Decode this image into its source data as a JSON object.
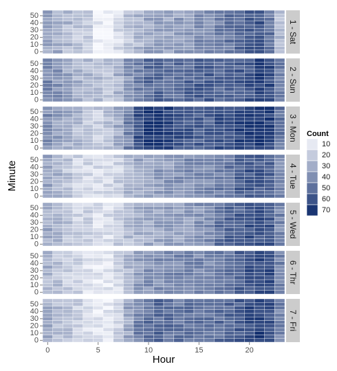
{
  "chart_data": {
    "type": "heatmap",
    "xlabel": "Hour",
    "ylabel": "Minute",
    "x_ticks": [
      0,
      5,
      10,
      15,
      20
    ],
    "y_ticks": [
      0,
      10,
      20,
      30,
      40,
      50
    ],
    "xlim": [
      -0.5,
      23.5
    ],
    "ylim": [
      -2.5,
      57.5
    ],
    "grid": true,
    "legend": {
      "title": "Count",
      "placement": "right",
      "levels": [
        10,
        20,
        30,
        40,
        50,
        60,
        70
      ]
    },
    "color_low": "#f7f8fd",
    "color_high": "#132f6e",
    "facets": [
      {
        "label": "1 - Sat",
        "hourly_values": [
          34,
          30,
          26,
          22,
          20,
          8,
          6,
          14,
          22,
          26,
          32,
          34,
          32,
          34,
          36,
          40,
          40,
          44,
          48,
          52,
          56,
          60,
          48,
          24
        ]
      },
      {
        "label": "2 - Sun",
        "hourly_values": [
          42,
          38,
          32,
          28,
          28,
          24,
          24,
          28,
          38,
          46,
          52,
          54,
          50,
          50,
          54,
          56,
          56,
          54,
          54,
          56,
          60,
          66,
          62,
          44
        ]
      },
      {
        "label": "3 - Mon",
        "hourly_values": [
          40,
          34,
          30,
          26,
          22,
          20,
          22,
          30,
          44,
          62,
          70,
          70,
          66,
          60,
          58,
          56,
          56,
          60,
          62,
          64,
          68,
          70,
          66,
          48
        ]
      },
      {
        "label": "4 - Tue",
        "hourly_values": [
          34,
          28,
          22,
          18,
          16,
          14,
          14,
          18,
          26,
          32,
          34,
          36,
          36,
          38,
          40,
          40,
          42,
          46,
          48,
          54,
          58,
          58,
          54,
          42
        ]
      },
      {
        "label": "5 - Wed",
        "hourly_values": [
          30,
          26,
          22,
          18,
          16,
          14,
          14,
          18,
          24,
          28,
          30,
          32,
          34,
          34,
          36,
          38,
          42,
          50,
          54,
          56,
          60,
          60,
          58,
          42
        ]
      },
      {
        "label": "6 - Thr",
        "hourly_values": [
          28,
          24,
          20,
          16,
          12,
          10,
          10,
          16,
          26,
          34,
          38,
          40,
          40,
          42,
          44,
          42,
          42,
          46,
          50,
          56,
          60,
          64,
          62,
          44
        ]
      },
      {
        "label": "7 - Fri",
        "hourly_values": [
          30,
          26,
          22,
          18,
          14,
          10,
          10,
          18,
          32,
          44,
          50,
          52,
          50,
          48,
          48,
          48,
          50,
          52,
          54,
          56,
          62,
          66,
          62,
          44
        ]
      }
    ]
  }
}
